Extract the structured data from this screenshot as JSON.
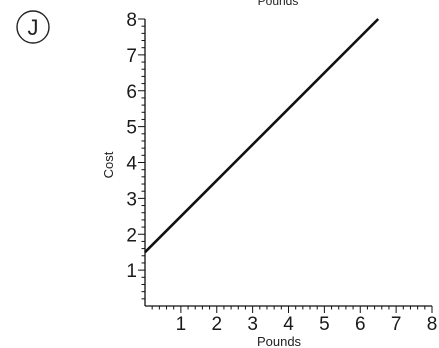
{
  "option_letter": "J",
  "chart_data": {
    "type": "line",
    "title": "Pounds",
    "xlabel": "Pounds",
    "ylabel": "Cost",
    "xlim": [
      0,
      8
    ],
    "ylim": [
      0,
      8
    ],
    "x_ticks": [
      "1",
      "2",
      "3",
      "4",
      "5",
      "6",
      "7",
      "8"
    ],
    "y_ticks": [
      "1",
      "2",
      "3",
      "4",
      "5",
      "6",
      "7",
      "8"
    ],
    "minor_ticks_per_unit": 5,
    "grid": false,
    "series": [
      {
        "points": [
          {
            "x": 0,
            "y": 1.5
          },
          {
            "x": 6.5,
            "y": 8
          }
        ],
        "color": "#111111"
      }
    ]
  }
}
